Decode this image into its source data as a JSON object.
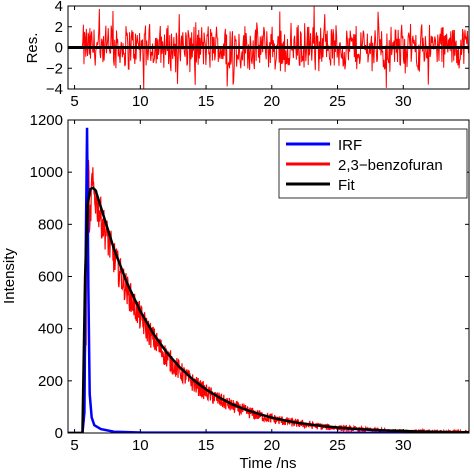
{
  "chart_data": [
    {
      "type": "line",
      "panel": "residuals",
      "ylabel": "Res.",
      "xlim": [
        4.5,
        35
      ],
      "ylim": [
        -4,
        4
      ],
      "xticks": [
        5,
        10,
        15,
        20,
        25,
        30
      ],
      "xtick_labels": [
        "5",
        "10",
        "15",
        "20",
        "25",
        "30"
      ],
      "yticks": [
        -4,
        -2,
        0,
        2,
        4
      ],
      "ytick_labels": [
        "−4",
        "−2",
        "0",
        "2",
        "4"
      ],
      "noise_start": 5.6,
      "noise_amplitude": 2.6,
      "series": [
        {
          "name": "",
          "color": "#ff0000",
          "kind": "residual-noise"
        },
        {
          "name": "",
          "color": "#000000",
          "x": [
            4.5,
            35
          ],
          "y": [
            0,
            0
          ]
        }
      ]
    },
    {
      "type": "line",
      "panel": "decay",
      "xlabel": "Time /ns",
      "ylabel": "Intensity",
      "xlim": [
        4.5,
        35
      ],
      "ylim": [
        0,
        1200
      ],
      "xticks": [
        5,
        10,
        15,
        20,
        25,
        30
      ],
      "xtick_labels": [
        "5",
        "10",
        "15",
        "20",
        "25",
        "30"
      ],
      "yticks": [
        0,
        200,
        400,
        600,
        800,
        1000,
        1200
      ],
      "ytick_labels": [
        "0",
        "200",
        "400",
        "600",
        "800",
        "1000",
        "1200"
      ],
      "legend": "top-right",
      "series": [
        {
          "name": "IRF",
          "color": "#0000ff",
          "x": [
            4.5,
            5.6,
            5.75,
            5.85,
            5.95,
            6.05,
            6.15,
            6.3,
            6.5,
            7.0,
            8.0,
            10.0,
            35.0
          ],
          "y": [
            0,
            0,
            80,
            700,
            1170,
            550,
            150,
            60,
            30,
            15,
            5,
            2,
            0
          ]
        },
        {
          "name": "2,3−benzofuran",
          "color": "#ff0000",
          "kind": "noisy-decay",
          "onset": 5.6,
          "peak_time": 6.4,
          "peak": 940,
          "tau": 4.8,
          "noise_amplitude": 80
        },
        {
          "name": "Fit",
          "color": "#000000",
          "x": [
            4.5,
            5.6,
            5.8,
            6.0,
            6.2,
            6.4,
            6.6,
            7,
            8,
            9,
            10,
            11,
            12,
            13,
            14,
            15,
            16,
            17,
            18,
            19,
            20,
            21,
            22,
            23,
            24,
            25,
            26,
            27,
            28,
            29,
            30,
            31,
            32,
            33,
            34,
            35
          ],
          "y": [
            0,
            0,
            600,
            880,
            935,
            940,
            930,
            866,
            705,
            574,
            467,
            380,
            309,
            252,
            205,
            167,
            136,
            110,
            90,
            73,
            59,
            48,
            39,
            32,
            26,
            21,
            17,
            14,
            11,
            9,
            8,
            6,
            5,
            4,
            3,
            3
          ]
        }
      ]
    }
  ]
}
